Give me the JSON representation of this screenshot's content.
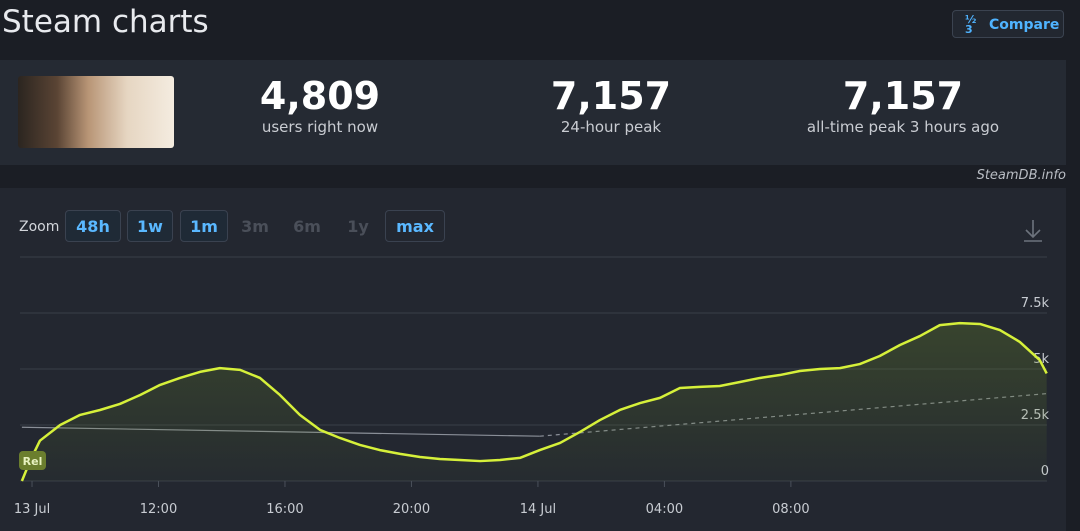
{
  "header": {
    "title": "Steam charts",
    "compare_button": "Compare"
  },
  "stats": [
    {
      "value": "4,809",
      "label": "users right now"
    },
    {
      "value": "7,157",
      "label": "24-hour peak"
    },
    {
      "value": "7,157",
      "label": "all-time peak 3 hours ago"
    }
  ],
  "credit": "SteamDB.info",
  "zoom": {
    "label": "Zoom",
    "options": [
      "48h",
      "1w",
      "1m",
      "3m",
      "6m",
      "1y",
      "max"
    ],
    "enabled": [
      true,
      true,
      true,
      false,
      false,
      false,
      true
    ],
    "active": 6
  },
  "chart_data": {
    "type": "line",
    "x": [
      7.68,
      7.94,
      8.25,
      8.89,
      9.52,
      10.15,
      10.78,
      11.42,
      12.05,
      12.68,
      13.31,
      13.94,
      14.58,
      15.21,
      15.84,
      16.47,
      17.11,
      17.74,
      18.37,
      19.0,
      19.64,
      20.27,
      20.9,
      21.53,
      22.17,
      22.8,
      23.43,
      24.06,
      24.7,
      25.33,
      25.96,
      26.59,
      27.23,
      27.86,
      28.49,
      29.12,
      29.75,
      30.39,
      31.02,
      31.65,
      32.28,
      32.92,
      33.55,
      34.18,
      34.81,
      35.45,
      36.08,
      36.71,
      37.34,
      37.98,
      38.61,
      39.24,
      39.87,
      40.09
    ],
    "series": [
      {
        "color": "#d6f03a",
        "values": [
          0,
          900,
          1800,
          2500,
          2950,
          3170,
          3440,
          3840,
          4290,
          4600,
          4870,
          5040,
          4960,
          4600,
          3840,
          2950,
          2280,
          1920,
          1610,
          1380,
          1210,
          1070,
          980,
          940,
          890,
          940,
          1030,
          1380,
          1700,
          2190,
          2720,
          3170,
          3480,
          3710,
          4150,
          4200,
          4240,
          4420,
          4600,
          4730,
          4910,
          5000,
          5040,
          5220,
          5580,
          6070,
          6470,
          6960,
          7050,
          7010,
          6740,
          6210,
          5400,
          4800
        ]
      }
    ],
    "trend": {
      "color": "#8a8f98",
      "x": [
        7.68,
        24.06,
        40.09
      ],
      "values": [
        2400,
        2000,
        3900
      ],
      "dashed_from": 1
    },
    "annotation": "Rel",
    "xlim": [
      7.62,
      40.1
    ],
    "xticks": [
      {
        "value": 8,
        "label": "13 Jul"
      },
      {
        "value": 12,
        "label": "12:00"
      },
      {
        "value": 16,
        "label": "16:00"
      },
      {
        "value": 20,
        "label": "20:00"
      },
      {
        "value": 24,
        "label": "14 Jul"
      },
      {
        "value": 28,
        "label": "04:00"
      },
      {
        "value": 32,
        "label": "08:00"
      }
    ],
    "ylim": [
      0,
      10000
    ],
    "yticks": [
      0,
      {
        "value": 2500,
        "label": "2.5k"
      },
      {
        "value": 5000,
        "label": "5k"
      },
      {
        "value": 7500,
        "label": "7.5k"
      }
    ],
    "grid": true
  }
}
